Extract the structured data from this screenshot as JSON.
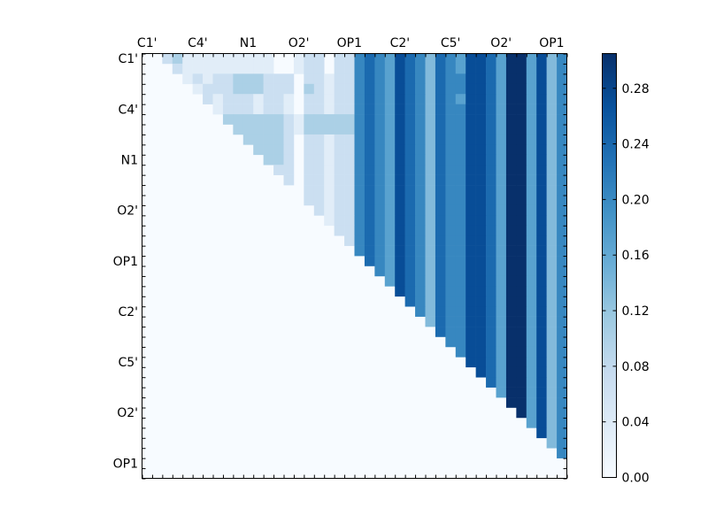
{
  "chart_data": {
    "type": "heatmap",
    "title": "",
    "xlabel": "",
    "ylabel": "",
    "n": 42,
    "x_tick_labels": [
      "C1'",
      "C4'",
      "N1",
      "O2'",
      "OP1",
      "C2'",
      "C5'",
      "O2'",
      "OP1"
    ],
    "y_tick_labels": [
      "C1'",
      "C4'",
      "N1",
      "O2'",
      "OP1",
      "C2'",
      "C5'",
      "O2'",
      "OP1"
    ],
    "label_tick_indices": [
      0,
      5,
      10,
      15,
      20,
      25,
      30,
      35,
      40
    ],
    "colorbar": {
      "min": 0.0,
      "max": 0.305,
      "ticks": [
        0.0,
        0.04,
        0.08,
        0.12,
        0.16,
        0.2,
        0.24,
        0.28
      ],
      "tick_labels": [
        "0.00",
        "0.04",
        "0.08",
        "0.12",
        "0.16",
        "0.20",
        "0.24",
        "0.28"
      ]
    },
    "colormap": "Blues",
    "colormap_colors": [
      "#f7fbff",
      "#deebf7",
      "#c6dbef",
      "#9ecae1",
      "#6baed6",
      "#4292c6",
      "#2171b5",
      "#08519c",
      "#08306b"
    ],
    "cell_values": [
      "0000000000000000000000000000000000000000000",
      "..."
    ],
    "matrix_rows": [
      "000000000000000000000000000000000000000000",
      "002202020000000000000000000000000000000000",
      "000002524333330000000000000000000000000000",
      "000002523433330000000000000000000000000000",
      "000000202000000000000000000000000000000000",
      "000000022444443200000000000000000000000000",
      "000000000433433300000000000000000000000000",
      "000000000000000030000000000000000000000000",
      "000000000000000023000000000000000000000000",
      "000000000000000000000000000000000000000000"
    ],
    "upper_triangle_rows": [
      "0223111111111001220226765876476588759958463",
      "0022111111111001220226765876476588759958463",
      "0002121223332220221226765876476688759958463",
      "0000212223332220321226765876476688759958463",
      "0000022122212210221226765876476588759958463",
      "0000002122212210221226765876476688759958464",
      "0000000233333321333336765876476688759958464",
      "0000000023333321333336765876476688759958464",
      "0000000002333320221226765876476688759958464",
      "0000000000333320221226765876476688759958464",
      "0000000000033320221226765876476688759958464",
      "0000000000003220221226765876476688759958464",
      "0000000000000220221226765876476688759958464",
      "0000000000000020221226765876476688759958464",
      "0000000000000002221226765876476688759958464",
      "0000000000000000221226765876476688759958464",
      "0000000000000000041226765876476688759958464",
      "0000000000000000003226765876476688759958464",
      "0000000000000000000326765876476688759958464",
      "0000000000000000000046765876476688759958464",
      "0000000000000000000006765876476688759958464",
      "0000000000000000000004465876476688759958464"
    ]
  }
}
